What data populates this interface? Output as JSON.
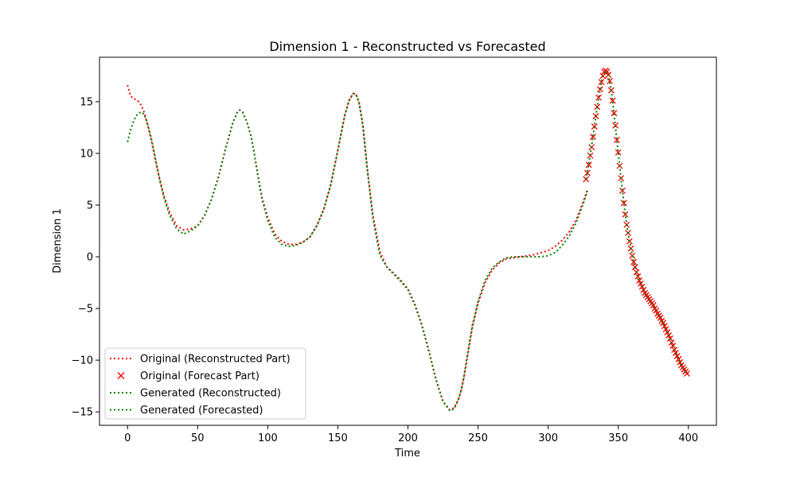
{
  "chart_data": {
    "type": "line",
    "title": "Dimension 1 - Reconstructed vs Forecasted",
    "xlabel": "Time",
    "ylabel": "Dimension 1",
    "xlim": [
      -20,
      420
    ],
    "ylim": [
      -16.3,
      19.3
    ],
    "xticks": [
      0,
      50,
      100,
      150,
      200,
      250,
      300,
      350,
      400
    ],
    "yticks": [
      -15,
      -10,
      -5,
      0,
      5,
      10,
      15
    ],
    "grid": false,
    "legend_position": "lower-left",
    "series": [
      {
        "name": "Original (Reconstructed Part)",
        "style": "dotted",
        "marker": "none",
        "color": "#ff0000",
        "x": [
          0,
          2,
          4,
          6,
          8,
          10,
          12,
          14,
          16,
          18,
          20,
          23,
          26,
          30,
          35,
          40,
          45,
          50,
          55,
          60,
          65,
          70,
          75,
          78,
          80,
          82,
          85,
          88,
          90,
          93,
          96,
          100,
          105,
          110,
          115,
          120,
          125,
          130,
          135,
          140,
          145,
          150,
          155,
          158,
          161,
          163,
          165,
          168,
          171,
          175,
          180,
          185,
          190,
          195,
          200,
          205,
          210,
          215,
          220,
          225,
          230,
          233,
          236,
          238,
          240,
          243,
          246,
          250,
          255,
          260,
          265,
          270,
          275,
          280,
          285,
          290,
          295,
          300,
          305,
          310,
          315,
          320,
          323,
          326,
          328
        ],
        "y": [
          16.6,
          15.6,
          15.3,
          15.2,
          15.0,
          14.6,
          13.9,
          12.9,
          11.8,
          10.6,
          9.3,
          7.5,
          5.9,
          4.3,
          3.0,
          2.6,
          2.7,
          3.0,
          4.0,
          5.6,
          7.8,
          10.5,
          12.9,
          13.9,
          14.2,
          14.0,
          13.1,
          11.7,
          10.3,
          7.9,
          5.7,
          3.8,
          2.2,
          1.5,
          1.2,
          1.2,
          1.4,
          1.9,
          3.0,
          4.6,
          7.0,
          10.3,
          13.7,
          15.1,
          15.8,
          15.7,
          15.0,
          12.6,
          8.5,
          4.0,
          0.5,
          -1.0,
          -1.7,
          -2.4,
          -3.2,
          -4.7,
          -6.7,
          -9.2,
          -11.9,
          -14.0,
          -14.8,
          -14.6,
          -13.8,
          -12.9,
          -11.6,
          -9.2,
          -6.8,
          -4.5,
          -2.5,
          -1.3,
          -0.6,
          -0.2,
          -0.1,
          0.0,
          0.1,
          0.2,
          0.4,
          0.6,
          1.0,
          1.6,
          2.4,
          3.6,
          4.6,
          5.7,
          6.5
        ]
      },
      {
        "name": "Original (Forecast Part)",
        "style": "none",
        "marker": "x",
        "color": "#ff0000",
        "x": [
          327,
          328,
          329,
          330,
          331,
          332,
          333,
          334,
          335,
          336,
          337,
          338,
          339,
          340,
          341,
          342,
          343,
          344,
          345,
          346,
          347,
          348,
          349,
          350,
          351,
          352,
          353,
          354,
          355,
          356,
          357,
          358,
          359,
          360,
          361,
          362,
          363,
          364,
          365,
          366,
          367,
          368,
          369,
          370,
          371,
          372,
          373,
          374,
          375,
          376,
          377,
          378,
          379,
          380,
          381,
          382,
          383,
          384,
          385,
          386,
          387,
          388,
          389,
          390,
          391,
          392,
          393,
          394,
          395,
          396,
          397,
          398,
          399
        ],
        "y": [
          7.5,
          8.1,
          8.9,
          9.8,
          10.6,
          11.6,
          12.6,
          13.6,
          14.5,
          15.4,
          16.2,
          16.9,
          17.5,
          17.9,
          18.0,
          17.9,
          17.6,
          17.0,
          16.1,
          15.1,
          13.9,
          12.7,
          11.3,
          10.1,
          8.8,
          7.6,
          6.4,
          5.2,
          4.1,
          3.1,
          2.3,
          1.5,
          0.8,
          0.1,
          -0.5,
          -1.0,
          -1.5,
          -1.9,
          -2.3,
          -2.6,
          -2.9,
          -3.2,
          -3.5,
          -3.7,
          -3.9,
          -4.1,
          -4.3,
          -4.5,
          -4.7,
          -5.0,
          -5.2,
          -5.5,
          -5.7,
          -5.9,
          -6.2,
          -6.4,
          -6.7,
          -7.0,
          -7.3,
          -7.6,
          -7.9,
          -8.3,
          -8.6,
          -9.0,
          -9.3,
          -9.6,
          -9.9,
          -10.2,
          -10.5,
          -10.7,
          -10.9,
          -11.1,
          -11.3
        ]
      },
      {
        "name": "Generated (Reconstructed)",
        "style": "dotted",
        "marker": "none",
        "color": "#008000",
        "x": [
          0,
          2,
          4,
          6,
          8,
          10,
          12,
          14,
          16,
          18,
          20,
          23,
          26,
          30,
          35,
          40,
          45,
          50,
          55,
          60,
          65,
          70,
          75,
          78,
          80,
          82,
          85,
          88,
          90,
          93,
          96,
          100,
          105,
          110,
          115,
          120,
          125,
          130,
          135,
          140,
          145,
          150,
          155,
          158,
          161,
          163,
          165,
          168,
          171,
          175,
          180,
          185,
          190,
          195,
          200,
          205,
          210,
          215,
          220,
          225,
          230,
          233,
          236,
          238,
          240,
          243,
          246,
          250,
          255,
          260,
          265,
          270,
          275,
          280,
          285,
          290,
          295,
          300,
          305,
          310,
          315,
          320,
          323,
          326,
          328
        ],
        "y": [
          11.1,
          12.2,
          13.0,
          13.6,
          13.9,
          14.0,
          13.7,
          13.0,
          12.0,
          10.8,
          9.4,
          7.4,
          5.7,
          4.0,
          2.7,
          2.2,
          2.5,
          3.0,
          4.0,
          5.6,
          7.8,
          10.5,
          12.9,
          13.9,
          14.2,
          14.0,
          13.1,
          11.7,
          10.3,
          7.8,
          5.5,
          3.5,
          1.9,
          1.2,
          1.0,
          1.1,
          1.4,
          1.9,
          3.0,
          4.6,
          7.0,
          10.3,
          13.7,
          15.1,
          15.8,
          15.7,
          15.0,
          12.6,
          8.5,
          3.7,
          0.1,
          -1.0,
          -1.6,
          -2.3,
          -3.1,
          -4.6,
          -6.6,
          -9.1,
          -11.8,
          -14.0,
          -14.9,
          -14.7,
          -13.8,
          -12.9,
          -11.5,
          -9.0,
          -6.6,
          -4.3,
          -2.3,
          -1.1,
          -0.5,
          -0.1,
          0.0,
          0.0,
          0.0,
          0.0,
          0.0,
          0.1,
          0.4,
          1.1,
          2.0,
          3.3,
          4.4,
          5.5,
          6.4
        ]
      },
      {
        "name": "Generated (Forecasted)",
        "style": "dotted",
        "marker": "none",
        "color": "#008000",
        "x": [
          327,
          330,
          333,
          336,
          339,
          341,
          343,
          345,
          347,
          349,
          351,
          353,
          355,
          357,
          359,
          361,
          363,
          365,
          368,
          371,
          374,
          377,
          380,
          383,
          386,
          389,
          392,
          395,
          398,
          399
        ],
        "y": [
          7.5,
          9.8,
          12.6,
          15.4,
          17.5,
          18.0,
          17.6,
          16.1,
          13.9,
          11.3,
          8.8,
          6.4,
          4.1,
          2.3,
          0.8,
          -0.5,
          -1.5,
          -2.3,
          -3.2,
          -3.9,
          -4.5,
          -5.2,
          -5.9,
          -6.7,
          -7.6,
          -8.6,
          -9.6,
          -10.5,
          -11.1,
          -11.3
        ]
      }
    ]
  }
}
